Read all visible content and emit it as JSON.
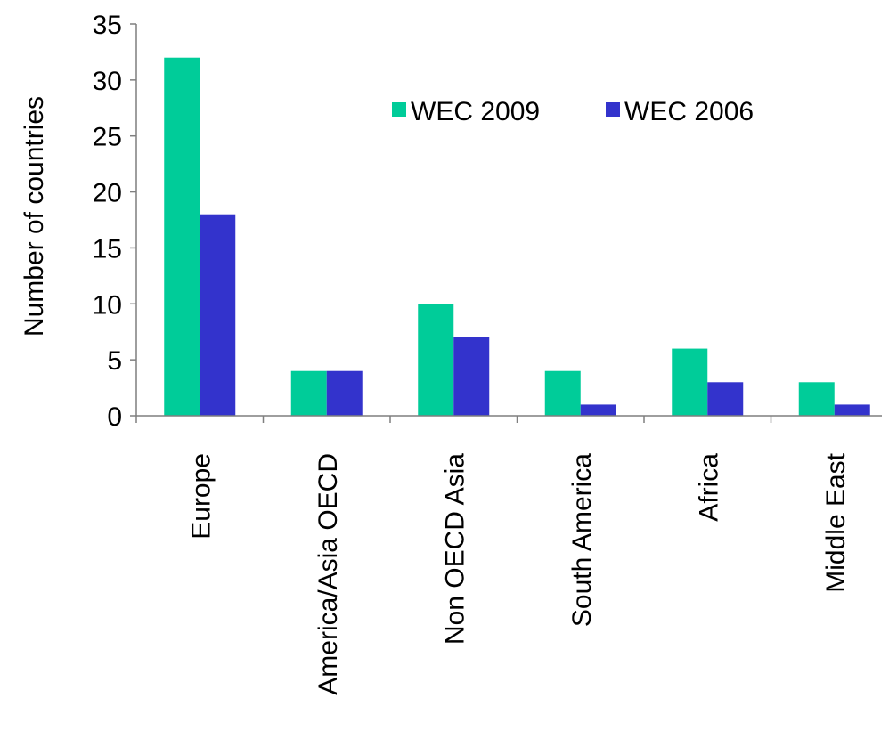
{
  "chart_data": {
    "type": "bar",
    "categories": [
      "Europe",
      "America/Asia OECD",
      "Non OECD Asia",
      "South America",
      "Africa",
      "Middle East"
    ],
    "series": [
      {
        "name": "WEC 2009",
        "values": [
          32,
          4,
          10,
          4,
          6,
          3
        ],
        "color": "#00CC99"
      },
      {
        "name": "WEC 2006",
        "values": [
          18,
          4,
          7,
          1,
          3,
          1
        ],
        "color": "#3333CC"
      }
    ],
    "title": "",
    "xlabel": "",
    "ylabel": "Number of countries",
    "ylim": [
      0,
      35
    ],
    "yticks": [
      0,
      5,
      10,
      15,
      20,
      25,
      30,
      35
    ],
    "grid": false,
    "legend_position": "top-right"
  }
}
